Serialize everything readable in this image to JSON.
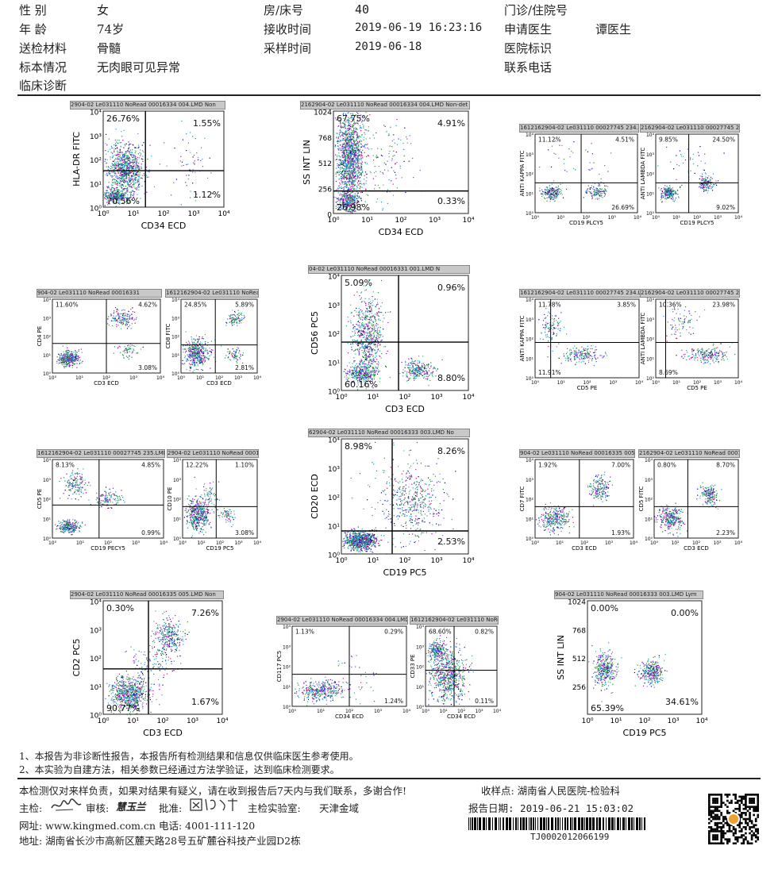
{
  "header": {
    "sex_label": "性 别",
    "sex": "女",
    "age_label": "年 龄",
    "age": "74岁",
    "specimen_label": "送检材料",
    "specimen": "骨髓",
    "condition_label": "标本情况",
    "condition": "无肉眼可见异常",
    "diagnosis_label": "临床诊断",
    "bed_label": "房/床号",
    "bed": "40",
    "received_label": "接收时间",
    "received": "2019-06-19 16:23:16",
    "sampled_label": "采样时间",
    "sampled": "2019-06-18",
    "clinic_label": "门诊/住院号",
    "doctor_label": "申请医生",
    "doctor": "谭医生",
    "hospital_label": "医院标识",
    "phone_label": "联系电话"
  },
  "plots": [
    {
      "title": "2904-02 Le031110 NoRead 00016334 004.LMD  Non",
      "xlabel": "CD34 ECD",
      "ylabel": "HLA-DR FITC",
      "q": [
        "26.76%",
        "1.55%",
        "70.56%",
        "1.12%"
      ],
      "ticks": [
        "10⁰",
        "10¹",
        "10²",
        "10³",
        "10⁴"
      ]
    },
    {
      "title": "2162904-02 Le031110 NoRead 00016334 004.LMD Non-det",
      "xlabel": "CD34 ECD",
      "ylabel": "SS INT LIN",
      "q": [
        "67.75%",
        "4.91%",
        "26.98%",
        "0.33%"
      ],
      "yticks": [
        "1024",
        "768",
        "512",
        "256",
        "0"
      ]
    },
    {
      "title": "1612162904-02 Le031110 00027745 234.LMD Lymphocyte",
      "xlabel": "CD19 PLCY5",
      "ylabel": "ANTI KAPPA FITC",
      "q": [
        "11.12%",
        "4.51%",
        "",
        "26.69%"
      ]
    },
    {
      "title": "2162904-02 Le031110 00027745 235.LMD Lymph",
      "xlabel": "CD19 PLCY5",
      "ylabel": "ANTI LAMBDA FITC",
      "q": [
        "9.85%",
        "24.50%",
        "",
        "9.02%"
      ]
    },
    {
      "title": "904-02 Le031110 NoRead 00016331 ",
      "xlabel": "CD3 ECD",
      "ylabel": "CD4 PE",
      "q": [
        "11.60%",
        "4.62%",
        "",
        "3.08%"
      ]
    },
    {
      "title": "1612162904-02 Le031110 NoRead 00016331 001.LMD N",
      "xlabel": "CD3 ECD",
      "ylabel": "CD8 FITC",
      "q": [
        "24.85%",
        "5.89%",
        "",
        "2.81%"
      ]
    },
    {
      "title": "04-02 Le031110 NoRead 00016331 001.LMD  N",
      "xlabel": "CD3 ECD",
      "ylabel": "CD56 PC5",
      "q": [
        "5.09%",
        "0.96%",
        "60.16%",
        "8.80%"
      ]
    },
    {
      "title": "1612162904-02 Le031110 00027745 234.LMD Lymphocyte",
      "xlabel": "CD5 PE",
      "ylabel": "ANTI KAPPA FITC",
      "q": [
        "11.78%",
        "3.85%",
        "11.91%",
        ""
      ]
    },
    {
      "title": "2162904-02 Le031110 00027745 235.LMD Lymph",
      "xlabel": "CD5 PE",
      "ylabel": "ANTI LAMBDA FITC",
      "q": [
        "10.36%",
        "23.98%",
        "8.69%",
        ""
      ]
    },
    {
      "title": "1612162904-02 Le031110 00027745 235.LMD Non-defined",
      "xlabel": "CD19 PECY5",
      "ylabel": "CD5 PE",
      "q": [
        "8.13%",
        "4.85%",
        "",
        "0.99%"
      ]
    },
    {
      "title": "2904-02 Le031110 NoRead 00016335 005.LMD Non",
      "xlabel": "CD19 PC5",
      "ylabel": "CD10 PE",
      "q": [
        "12.22%",
        "1.10%",
        "",
        "3.08%"
      ]
    },
    {
      "title": "62904-02 Le031110 NoRead 00016333 003.LMD  No",
      "xlabel": "CD19 PC5",
      "ylabel": "CD20 ECD",
      "q": [
        "8.98%",
        "8.26%",
        "",
        "2.53%"
      ]
    },
    {
      "title": "904-02 Le031110 NoRead 00016335 005.LMD",
      "xlabel": "CD3 ECD",
      "ylabel": "CD7 FITC",
      "q": [
        "1.92%",
        "7.00%",
        "",
        "1.93%"
      ]
    },
    {
      "title": "2162904-02 Le031110 NoRead 00016335 005.LMD",
      "xlabel": "CD3 ECD",
      "ylabel": "CD5 FITC",
      "q": [
        "0.80%",
        "8.70%",
        "",
        "2.23%"
      ]
    },
    {
      "title": "2904-02 Le031110 NoRead 00016335 005.LMD  Non",
      "xlabel": "CD3 ECD",
      "ylabel": "CD2 PC5",
      "q": [
        "0.30%",
        "7.26%",
        "90.77%",
        "1.67%"
      ]
    },
    {
      "title": "2904-02 Le031110 NoRead 00016334 004.LMD",
      "xlabel": "CD34 ECD",
      "ylabel": "CD117 PC5",
      "q": [
        "1.13%",
        "0.29%",
        "",
        "1.24%"
      ]
    },
    {
      "title": "1612162904-02 Le031110 NoRead 00016334 004.LMD Non",
      "xlabel": "CD34 ECD",
      "ylabel": "CD33 PE",
      "q": [
        "68.60%",
        "0.82%",
        "",
        "0.11%"
      ]
    },
    {
      "title": "904-02 Le031110 NoRead 00016333 003.LMD  Lym",
      "xlabel": "CD19 PC5",
      "ylabel": "SS INT LIN",
      "q": [
        "0.00%",
        "0.00%",
        "65.39%",
        "34.61%"
      ],
      "yticks": [
        "1024",
        "768",
        "512",
        "256",
        ""
      ]
    }
  ],
  "notes": [
    "1、本报告为非诊断性报告，本报告所有检测结果和信息仅供临床医生参考使用。",
    "2、本实验为自建方法，相关参数已经通过方法学验证，达到临床检测要求。"
  ],
  "footer": {
    "disclaimer": "本检测仅对来样负责，如果对结果有疑义，请在收到报告后7天内与我们联系，多谢合作!",
    "collect_point": "收样点: 湖南省人民医院-检验科",
    "checker_label": "主检:",
    "reviewer_label": "审核:",
    "reviewer_sig": "慧玉兰",
    "approver_label": "批准:",
    "lab_label": "主检实验室:",
    "lab": "天津金域",
    "report_date": "报告日期: 2019-06-21 15:03:02",
    "website": "网址:  www.kingmed.com.cn  电话: 4001-111-120",
    "address": "地址:  湖南省长沙市高新区麓天路28号五矿麓谷科技产业园D2栋",
    "barcode_number": "TJ0002012066199"
  }
}
